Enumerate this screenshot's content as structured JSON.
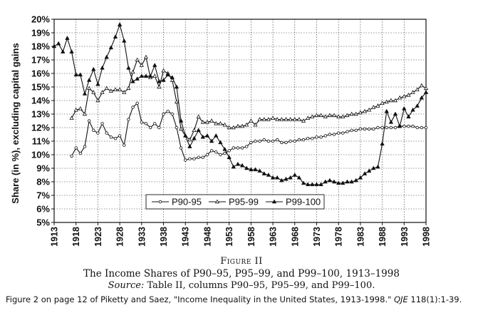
{
  "chart_data": {
    "type": "line",
    "ylabel": "Share (in %), excluding capital gains",
    "ylim": [
      5,
      20
    ],
    "xlim": [
      1913,
      1998
    ],
    "y_ticks": [
      "5%",
      "6%",
      "7%",
      "8%",
      "9%",
      "10%",
      "11%",
      "12%",
      "13%",
      "14%",
      "15%",
      "16%",
      "17%",
      "18%",
      "19%",
      "20%"
    ],
    "x_ticks": [
      "1913",
      "1918",
      "1923",
      "1928",
      "1933",
      "1938",
      "1943",
      "1948",
      "1953",
      "1958",
      "1963",
      "1968",
      "1973",
      "1978",
      "1983",
      "1988",
      "1993",
      "1998"
    ],
    "grid": true,
    "legend_position": "bottom-center",
    "series": [
      {
        "name": "P90-95",
        "marker": "open-circle",
        "x": [
          1917,
          1918,
          1919,
          1920,
          1921,
          1922,
          1923,
          1924,
          1925,
          1926,
          1927,
          1928,
          1929,
          1930,
          1931,
          1932,
          1933,
          1934,
          1935,
          1936,
          1937,
          1938,
          1939,
          1940,
          1941,
          1942,
          1943,
          1944,
          1945,
          1946,
          1947,
          1948,
          1949,
          1950,
          1951,
          1952,
          1953,
          1954,
          1955,
          1956,
          1957,
          1958,
          1959,
          1960,
          1961,
          1962,
          1963,
          1964,
          1965,
          1966,
          1967,
          1968,
          1969,
          1970,
          1971,
          1972,
          1973,
          1974,
          1975,
          1976,
          1977,
          1978,
          1979,
          1980,
          1981,
          1982,
          1983,
          1984,
          1985,
          1986,
          1987,
          1988,
          1989,
          1990,
          1991,
          1992,
          1993,
          1994,
          1995,
          1996,
          1997,
          1998
        ],
        "values": [
          9.9,
          10.5,
          10.1,
          10.6,
          12.5,
          11.8,
          11.6,
          12.3,
          11.6,
          11.3,
          11.2,
          11.4,
          10.7,
          12.6,
          13.5,
          13.8,
          12.4,
          12.3,
          12.0,
          12.3,
          12.0,
          13.0,
          13.2,
          13.0,
          12.0,
          10.5,
          9.6,
          9.7,
          9.7,
          9.8,
          9.8,
          10.0,
          10.3,
          10.2,
          10.0,
          10.1,
          10.3,
          10.5,
          10.5,
          10.5,
          10.6,
          10.9,
          11.0,
          11.0,
          11.1,
          11.0,
          11.0,
          11.1,
          10.9,
          10.9,
          11.0,
          11.0,
          11.1,
          11.1,
          11.2,
          11.2,
          11.3,
          11.3,
          11.4,
          11.5,
          11.5,
          11.6,
          11.6,
          11.7,
          11.8,
          11.8,
          11.9,
          11.9,
          11.9,
          11.9,
          12.0,
          12.0,
          12.0,
          12.0,
          12.0,
          12.1,
          12.1,
          12.1,
          12.1,
          12.0,
          12.0,
          12.0
        ]
      },
      {
        "name": "P95-99",
        "marker": "open-triangle",
        "x": [
          1917,
          1918,
          1919,
          1920,
          1921,
          1922,
          1923,
          1924,
          1925,
          1926,
          1927,
          1928,
          1929,
          1930,
          1931,
          1932,
          1933,
          1934,
          1935,
          1936,
          1937,
          1938,
          1939,
          1940,
          1941,
          1942,
          1943,
          1944,
          1945,
          1946,
          1947,
          1948,
          1949,
          1950,
          1951,
          1952,
          1953,
          1954,
          1955,
          1956,
          1957,
          1958,
          1959,
          1960,
          1961,
          1962,
          1963,
          1964,
          1965,
          1966,
          1967,
          1968,
          1969,
          1970,
          1971,
          1972,
          1973,
          1974,
          1975,
          1976,
          1977,
          1978,
          1979,
          1980,
          1981,
          1982,
          1983,
          1984,
          1985,
          1986,
          1987,
          1988,
          1989,
          1990,
          1991,
          1992,
          1993,
          1994,
          1995,
          1996,
          1997,
          1998
        ],
        "values": [
          12.7,
          13.3,
          13.4,
          13.0,
          14.9,
          14.6,
          14.0,
          14.6,
          14.9,
          14.7,
          14.8,
          14.8,
          14.6,
          14.9,
          16.1,
          17.0,
          16.6,
          17.2,
          15.7,
          15.8,
          15.0,
          16.2,
          16.0,
          15.5,
          13.9,
          11.9,
          11.4,
          11.1,
          11.8,
          12.8,
          12.4,
          12.4,
          12.5,
          12.3,
          12.3,
          12.2,
          12.0,
          12.0,
          12.1,
          12.1,
          12.2,
          12.5,
          12.2,
          12.6,
          12.6,
          12.6,
          12.7,
          12.6,
          12.6,
          12.6,
          12.6,
          12.6,
          12.6,
          12.5,
          12.7,
          12.8,
          12.9,
          12.9,
          12.8,
          12.9,
          12.9,
          12.8,
          12.8,
          12.9,
          13.0,
          13.0,
          13.1,
          13.2,
          13.3,
          13.5,
          13.6,
          13.8,
          13.9,
          14.0,
          14.0,
          14.2,
          14.3,
          14.4,
          14.6,
          14.8,
          15.1,
          14.9
        ]
      },
      {
        "name": "P99-100",
        "marker": "filled-triangle",
        "x": [
          1913,
          1914,
          1915,
          1916,
          1917,
          1918,
          1919,
          1920,
          1921,
          1922,
          1923,
          1924,
          1925,
          1926,
          1927,
          1928,
          1929,
          1930,
          1931,
          1932,
          1933,
          1934,
          1935,
          1936,
          1937,
          1938,
          1939,
          1940,
          1941,
          1942,
          1943,
          1944,
          1945,
          1946,
          1947,
          1948,
          1949,
          1950,
          1951,
          1952,
          1953,
          1954,
          1955,
          1956,
          1957,
          1958,
          1959,
          1960,
          1961,
          1962,
          1963,
          1964,
          1965,
          1966,
          1967,
          1968,
          1969,
          1970,
          1971,
          1972,
          1973,
          1974,
          1975,
          1976,
          1977,
          1978,
          1979,
          1980,
          1981,
          1982,
          1983,
          1984,
          1985,
          1986,
          1987,
          1988,
          1989,
          1990,
          1991,
          1992,
          1993,
          1994,
          1995,
          1996,
          1997,
          1998
        ],
        "values": [
          18.0,
          18.2,
          17.6,
          18.6,
          17.6,
          15.9,
          15.9,
          14.5,
          15.5,
          16.3,
          15.2,
          16.4,
          17.2,
          17.9,
          18.7,
          19.6,
          18.4,
          16.4,
          15.4,
          15.6,
          15.8,
          15.8,
          15.8,
          16.6,
          15.4,
          15.5,
          15.9,
          15.7,
          15.0,
          12.5,
          11.4,
          10.6,
          11.2,
          11.8,
          11.3,
          11.4,
          11.0,
          11.4,
          10.9,
          10.4,
          9.8,
          9.1,
          9.3,
          9.2,
          9.0,
          8.9,
          8.9,
          8.8,
          8.6,
          8.5,
          8.3,
          8.3,
          8.1,
          8.2,
          8.3,
          8.5,
          8.3,
          7.9,
          7.8,
          7.8,
          7.8,
          7.8,
          8.0,
          8.1,
          8.0,
          7.9,
          7.9,
          8.0,
          8.0,
          8.1,
          8.3,
          8.6,
          8.8,
          9.0,
          9.1,
          10.8,
          13.2,
          12.4,
          13.0,
          12.1,
          13.4,
          12.8,
          13.3,
          13.6,
          14.2,
          14.6
        ]
      }
    ]
  },
  "figure": {
    "number": "Figure II",
    "title": "The Income Shares of P90–95, P95–99, and P99–100, 1913–1998",
    "source_label": "Source:",
    "source_text": " Table II, columns P90–95, P95–99, and P99–100."
  },
  "page_caption": {
    "text": "Figure 2 on page 12 of Piketty and Saez, \"Income Inequality in the United States, 1913-1998.\" ",
    "journal": "QJE",
    "citation": " 118(1):1-39."
  },
  "colors": {
    "line": "#111111",
    "grid": "#333333",
    "background": "#ffffff"
  }
}
